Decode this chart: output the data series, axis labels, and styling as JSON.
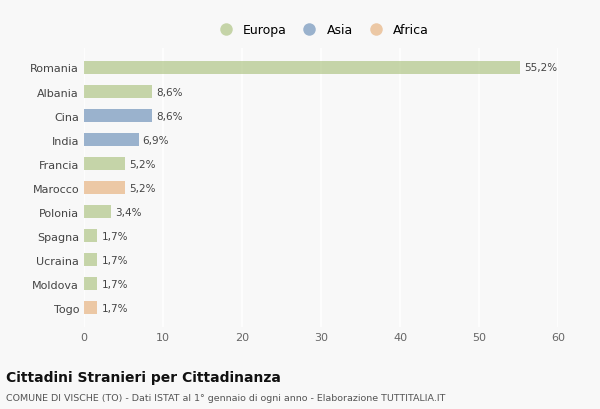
{
  "countries": [
    "Romania",
    "Albania",
    "Cina",
    "India",
    "Francia",
    "Marocco",
    "Polonia",
    "Spagna",
    "Ucraina",
    "Moldova",
    "Togo"
  ],
  "values": [
    55.2,
    8.6,
    8.6,
    6.9,
    5.2,
    5.2,
    3.4,
    1.7,
    1.7,
    1.7,
    1.7
  ],
  "labels": [
    "55,2%",
    "8,6%",
    "8,6%",
    "6,9%",
    "5,2%",
    "5,2%",
    "3,4%",
    "1,7%",
    "1,7%",
    "1,7%",
    "1,7%"
  ],
  "continents": [
    "Europa",
    "Europa",
    "Asia",
    "Asia",
    "Europa",
    "Africa",
    "Europa",
    "Europa",
    "Europa",
    "Europa",
    "Africa"
  ],
  "colors": {
    "Europa": "#b5c98e",
    "Asia": "#7b9bbf",
    "Africa": "#e8b88a"
  },
  "title": "Cittadini Stranieri per Cittadinanza",
  "subtitle": "COMUNE DI VISCHE (TO) - Dati ISTAT al 1° gennaio di ogni anno - Elaborazione TUTTITALIA.IT",
  "xlim": [
    0,
    60
  ],
  "xticks": [
    0,
    10,
    20,
    30,
    40,
    50,
    60
  ],
  "background_color": "#f8f8f8",
  "grid_color": "#e8e8e8",
  "bar_alpha": 0.75
}
